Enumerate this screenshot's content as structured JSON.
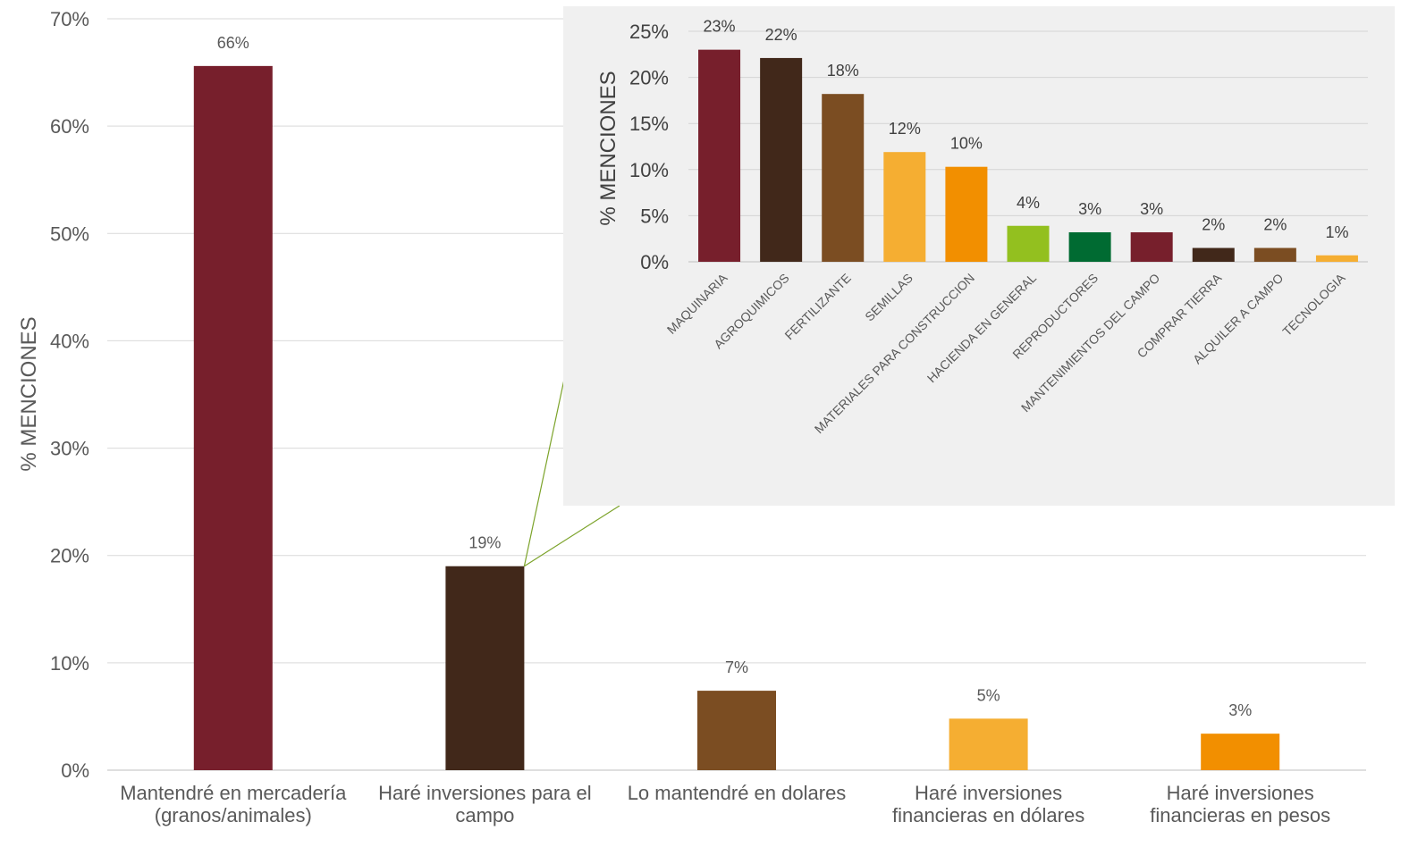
{
  "chart_data": [
    {
      "type": "bar",
      "ylabel": "% MENCIONES",
      "ylim": [
        0,
        70
      ],
      "yticks": [
        "0%",
        "10%",
        "20%",
        "30%",
        "40%",
        "50%",
        "60%",
        "70%"
      ],
      "grid": true,
      "categories": [
        [
          "Mantendré en mercadería",
          "(granos/animales)"
        ],
        [
          "Haré inversiones para el",
          "campo"
        ],
        [
          "Lo mantendré en dolares"
        ],
        [
          "Haré inversiones",
          "financieras en dólares"
        ],
        [
          "Haré inversiones",
          "financieras en pesos"
        ]
      ],
      "values": [
        66,
        19,
        7,
        5,
        3
      ],
      "precise_values": [
        65.6,
        19.0,
        7.4,
        4.8,
        3.4
      ],
      "value_labels": [
        "66%",
        "19%",
        "7%",
        "5%",
        "3%"
      ],
      "colors": [
        "#771f2c",
        "#41281a",
        "#7b4d22",
        "#f5ae32",
        "#f28f00"
      ]
    },
    {
      "type": "bar",
      "ylabel": "% MENCIONES",
      "ylim": [
        0,
        25
      ],
      "yticks": [
        "0%",
        "5%",
        "10%",
        "15%",
        "20%",
        "25%"
      ],
      "grid": true,
      "background": "#f0f0f0",
      "categories": [
        "MAQUINARIA",
        "AGROQUIMICOS",
        "FERTILIZANTE",
        "SEMILLAS",
        "MATERIALES PARA CONSTRUCCION",
        "HACIENDA EN GENERAL",
        "REPRODUCTORES",
        "MANTENIMIENTOS DEL CAMPO",
        "COMPRAR TIERRA",
        "ALQUILER A CAMPO",
        "TECNOLOGIA"
      ],
      "values": [
        23,
        22,
        18,
        12,
        10,
        4,
        3,
        3,
        2,
        2,
        1
      ],
      "precise_values": [
        23.0,
        22.1,
        18.2,
        11.9,
        10.3,
        3.9,
        3.2,
        3.2,
        1.5,
        1.5,
        0.7
      ],
      "value_labels": [
        "23%",
        "22%",
        "18%",
        "12%",
        "10%",
        "4%",
        "3%",
        "3%",
        "2%",
        "2%",
        "1%"
      ],
      "colors": [
        "#771f2c",
        "#41281a",
        "#7b4d22",
        "#f5ae32",
        "#f28f00",
        "#93c01f",
        "#006b32",
        "#771f2c",
        "#41281a",
        "#7b4d22",
        "#f5ae32"
      ]
    }
  ],
  "connector_color": "#7ca32a"
}
